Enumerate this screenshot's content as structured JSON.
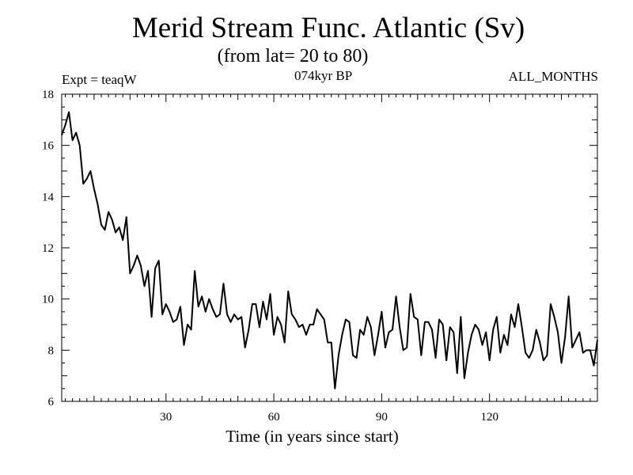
{
  "chart_data": {
    "type": "line",
    "title": "Merid Stream Func. Atlantic (Sv)",
    "subtitle": "(from lat= 20 to 80)",
    "left_label": "Expt = teaqW",
    "center_label": "074kyr BP",
    "right_label": "ALL_MONTHS",
    "xlabel": "Time (in years since start)",
    "ylabel": "",
    "xlim": [
      1,
      150
    ],
    "ylim": [
      6,
      18
    ],
    "xticks": [
      30,
      60,
      90,
      120
    ],
    "yticks": [
      6,
      8,
      10,
      12,
      14,
      16,
      18
    ],
    "grid": false,
    "series": [
      {
        "name": "Merid Stream Func. Atlantic",
        "x": [
          1,
          2,
          3,
          4,
          5,
          6,
          7,
          8,
          9,
          10,
          11,
          12,
          13,
          14,
          15,
          16,
          17,
          18,
          19,
          20,
          21,
          22,
          23,
          24,
          25,
          26,
          27,
          28,
          29,
          30,
          31,
          32,
          33,
          34,
          35,
          36,
          37,
          38,
          39,
          40,
          41,
          42,
          43,
          44,
          45,
          46,
          47,
          48,
          49,
          50,
          51,
          52,
          53,
          54,
          55,
          56,
          57,
          58,
          59,
          60,
          61,
          62,
          63,
          64,
          65,
          66,
          67,
          68,
          69,
          70,
          71,
          72,
          73,
          74,
          75,
          76,
          77,
          78,
          79,
          80,
          81,
          82,
          83,
          84,
          85,
          86,
          87,
          88,
          89,
          90,
          91,
          92,
          93,
          94,
          95,
          96,
          97,
          98,
          99,
          100,
          101,
          102,
          103,
          104,
          105,
          106,
          107,
          108,
          109,
          110,
          111,
          112,
          113,
          114,
          115,
          116,
          117,
          118,
          119,
          120,
          121,
          122,
          123,
          124,
          125,
          126,
          127,
          128,
          129,
          130,
          131,
          132,
          133,
          134,
          135,
          136,
          137,
          138,
          139,
          140,
          141,
          142,
          143,
          144,
          145,
          146,
          147,
          148,
          149,
          150
        ],
        "values": [
          16.4,
          16.8,
          17.3,
          16.2,
          16.5,
          16.0,
          14.5,
          14.7,
          15.0,
          14.3,
          13.7,
          12.9,
          12.7,
          13.4,
          13.1,
          12.6,
          12.8,
          12.3,
          13.2,
          11.0,
          11.3,
          11.7,
          11.3,
          10.5,
          11.1,
          9.3,
          11.2,
          11.5,
          9.4,
          9.8,
          9.5,
          9.1,
          9.2,
          9.7,
          8.2,
          9.0,
          8.8,
          11.1,
          9.7,
          10.1,
          9.5,
          10.0,
          9.6,
          9.3,
          9.4,
          10.6,
          9.4,
          9.1,
          9.4,
          9.2,
          9.3,
          8.1,
          8.8,
          9.8,
          9.8,
          8.9,
          9.9,
          9.2,
          10.2,
          8.6,
          9.3,
          9.0,
          8.3,
          10.3,
          9.4,
          9.2,
          8.9,
          9.0,
          8.6,
          9.0,
          9.0,
          9.6,
          9.4,
          9.2,
          8.3,
          8.3,
          6.5,
          7.8,
          8.6,
          9.2,
          9.1,
          7.8,
          7.7,
          8.8,
          8.6,
          9.3,
          8.9,
          7.8,
          8.6,
          9.5,
          8.1,
          8.7,
          8.8,
          10.1,
          8.9,
          8.0,
          8.1,
          10.2,
          9.3,
          9.2,
          7.8,
          9.1,
          9.1,
          8.8,
          7.7,
          9.2,
          9.0,
          7.6,
          8.9,
          8.7,
          7.1,
          9.3,
          6.9,
          7.9,
          8.6,
          9.0,
          8.8,
          8.2,
          8.7,
          7.6,
          8.8,
          9.3,
          7.9,
          8.6,
          8.2,
          9.4,
          8.9,
          9.8,
          8.9,
          7.9,
          7.7,
          8.0,
          8.8,
          8.3,
          7.6,
          7.8,
          9.8,
          9.3,
          8.7,
          7.5,
          8.5,
          10.1,
          8.1,
          8.4,
          8.7,
          7.9,
          8.0,
          8.0,
          7.4,
          8.4
        ]
      }
    ]
  }
}
